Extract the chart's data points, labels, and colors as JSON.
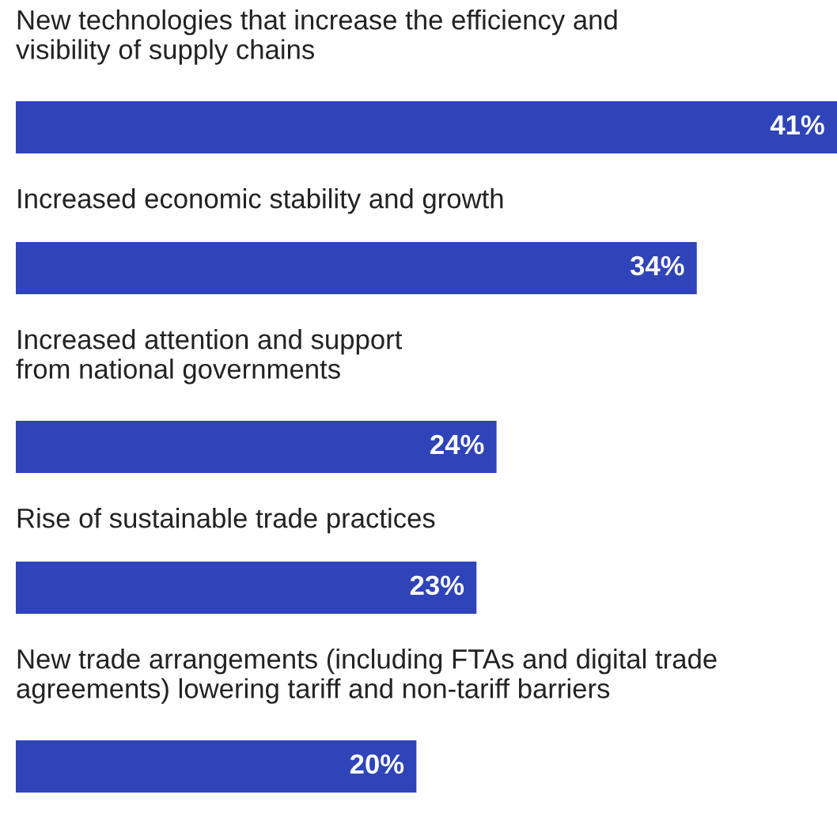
{
  "chart_data": {
    "type": "bar",
    "orientation": "horizontal",
    "categories": [
      "New technologies that increase the efficiency and\nvisibility of supply chains",
      "Increased economic stability and growth",
      "Increased attention and support\nfrom national governments",
      "Rise of sustainable trade practices",
      "New trade arrangements (including FTAs and digital trade\nagreements) lowering tariff and non-tariff barriers"
    ],
    "values": [
      41,
      34,
      24,
      23,
      20
    ],
    "value_labels": [
      "41%",
      "34%",
      "24%",
      "23%",
      "20%"
    ],
    "color": "#2f44b9",
    "xlim": [
      0,
      41
    ]
  }
}
